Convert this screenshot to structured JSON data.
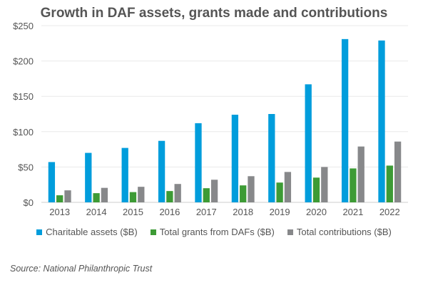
{
  "chart_data": {
    "type": "bar",
    "title": "Growth in DAF assets, grants made and contributions",
    "categories": [
      "2013",
      "2014",
      "2015",
      "2016",
      "2017",
      "2018",
      "2019",
      "2020",
      "2021",
      "2022"
    ],
    "series": [
      {
        "name": "Charitable assets ($B)",
        "color": "#009ddc",
        "values": [
          57,
          70,
          77,
          87,
          112,
          124,
          125,
          167,
          231,
          229
        ]
      },
      {
        "name": "Total grants from DAFs ($B)",
        "color": "#3d9b35",
        "values": [
          10,
          13,
          14.5,
          16,
          20,
          24,
          28,
          35,
          48,
          52
        ]
      },
      {
        "name": "Total contributions ($B)",
        "color": "#87888a",
        "values": [
          17,
          20.5,
          22,
          26,
          32,
          37,
          43,
          50,
          79,
          86
        ]
      }
    ],
    "yticks": [
      "$0",
      "$50",
      "$100",
      "$150",
      "$200",
      "$250"
    ],
    "ylim": [
      0,
      250
    ],
    "grid": true,
    "legend": "bottom",
    "xlabel": "",
    "ylabel": ""
  },
  "source": "Source: National Philanthropic Trust"
}
